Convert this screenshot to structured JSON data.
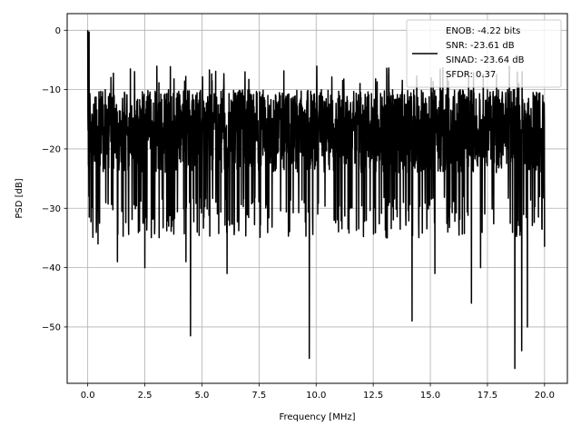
{
  "chart_data": {
    "type": "line",
    "title": "",
    "xlabel": "Frequency [MHz]",
    "ylabel": "PSD [dB]",
    "xlim": [
      -0.9,
      21.0
    ],
    "ylim": [
      -59.5,
      2.8
    ],
    "xticks": [
      0.0,
      2.5,
      5.0,
      7.5,
      10.0,
      12.5,
      15.0,
      17.5,
      20.0
    ],
    "xtick_labels": [
      "0.0",
      "2.5",
      "5.0",
      "7.5",
      "10.0",
      "12.5",
      "15.0",
      "17.5",
      "20.0"
    ],
    "yticks": [
      0,
      -10,
      -20,
      -30,
      -40,
      -50
    ],
    "ytick_labels": [
      "0",
      "−10",
      "−20",
      "−30",
      "−40",
      "−50"
    ],
    "grid": true,
    "legend": {
      "position": "top-right",
      "entries": [
        "ENOB: -4.22 bits",
        "SNR: -23.61 dB",
        "SINAD: -23.64 dB",
        "SFDR: 0.37"
      ]
    },
    "series": [
      {
        "color": "#000000",
        "description": "noise-like PSD trace spanning 0 to 20 MHz",
        "peak": {
          "x": 0.0,
          "y": 0.0
        },
        "band_top": -10,
        "band_bottom": -28,
        "notable_points": [
          {
            "x": 0.06,
            "y": -0.3
          },
          {
            "x": 0.05,
            "y": -28
          },
          {
            "x": 0.45,
            "y": -36
          },
          {
            "x": 1.3,
            "y": -39
          },
          {
            "x": 2.5,
            "y": -40
          },
          {
            "x": 4.3,
            "y": -39
          },
          {
            "x": 4.5,
            "y": -51.5
          },
          {
            "x": 6.1,
            "y": -41
          },
          {
            "x": 9.7,
            "y": -55.3
          },
          {
            "x": 14.2,
            "y": -49
          },
          {
            "x": 15.2,
            "y": -41
          },
          {
            "x": 16.8,
            "y": -46
          },
          {
            "x": 17.2,
            "y": -40
          },
          {
            "x": 18.7,
            "y": -57
          },
          {
            "x": 19.0,
            "y": -54
          },
          {
            "x": 19.25,
            "y": -50
          },
          {
            "x": 20.0,
            "y": -36.5
          }
        ]
      }
    ]
  }
}
